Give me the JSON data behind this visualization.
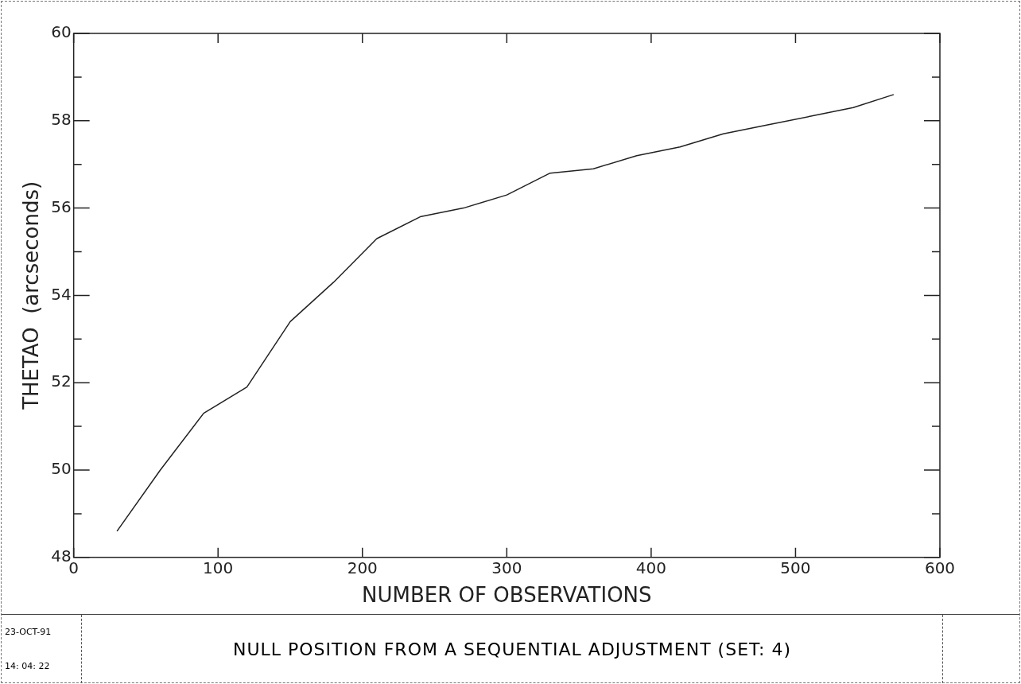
{
  "chart_data": {
    "type": "line",
    "title": "NULL POSITION FROM A SEQUENTIAL ADJUSTMENT  (SET: 4)",
    "xlabel": "NUMBER OF OBSERVATIONS",
    "ylabel": "THETAO  (arcseconds)",
    "annotations": [
      "23-OCT-91",
      "14: 04: 22"
    ],
    "x": [
      30,
      60,
      90,
      120,
      150,
      180,
      210,
      240,
      270,
      300,
      330,
      360,
      390,
      420,
      450,
      480,
      510,
      540,
      568
    ],
    "series": [
      {
        "color": "#222222",
        "values": [
          48.6,
          50.0,
          51.3,
          51.9,
          53.4,
          54.3,
          55.3,
          55.8,
          56.0,
          56.3,
          56.8,
          56.9,
          57.2,
          57.4,
          57.7,
          57.9,
          58.1,
          58.3,
          58.6
        ]
      }
    ],
    "xlim": [
      0,
      600
    ],
    "xticks": [
      0,
      100,
      200,
      300,
      400,
      500,
      600
    ],
    "ylim": [
      48,
      60
    ],
    "yticks": [
      48,
      {
        "value": 49,
        "label": null
      },
      50,
      {
        "value": 51,
        "label": null
      },
      52,
      {
        "value": 53,
        "label": null
      },
      54,
      {
        "value": 55,
        "label": null
      },
      56,
      {
        "value": 57,
        "label": null
      },
      58,
      {
        "value": 59,
        "label": null
      },
      60
    ],
    "grid": false,
    "legend": false,
    "marker": "none",
    "line_style": "solid"
  }
}
